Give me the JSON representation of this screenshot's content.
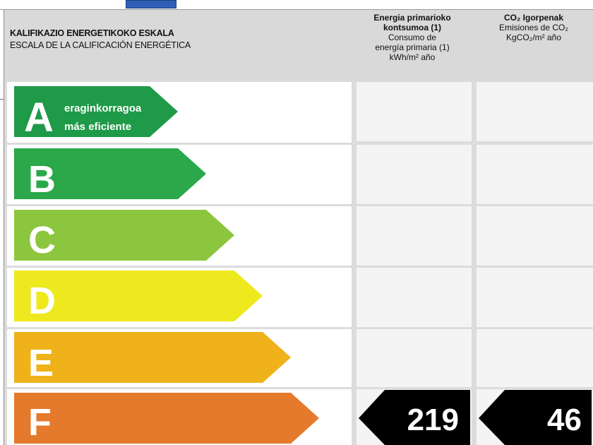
{
  "scale": {
    "title_eu": "KALIFIKAZIO ENERGETIKOKO ESKALA",
    "title_es": "ESCALA DE LA CALIFICACIÓN ENERGÉTICA",
    "top_note_eu": "eraginkorragoa",
    "top_note_es": "más eficiente",
    "classes": [
      {
        "letter": "A",
        "color": "#1f9a48"
      },
      {
        "letter": "B",
        "color": "#2aa84a"
      },
      {
        "letter": "C",
        "color": "#8cc63e"
      },
      {
        "letter": "D",
        "color": "#eee91e"
      },
      {
        "letter": "E",
        "color": "#efb21b"
      },
      {
        "letter": "F",
        "color": "#e5792c"
      }
    ]
  },
  "columns": {
    "energy": {
      "line1": "Energia primarioko",
      "line2": "kontsumoa (1)",
      "line3": "Consumo de",
      "line4": "energía primaria (1)",
      "line5": "kWh/m² año"
    },
    "co2": {
      "line1": "CO₂ Igorpenak",
      "line2": "Emisiones de CO₂",
      "line3": "KgCO₂/m² año"
    }
  },
  "result": {
    "class": "F",
    "energy_value": "219",
    "co2_value": "46"
  }
}
